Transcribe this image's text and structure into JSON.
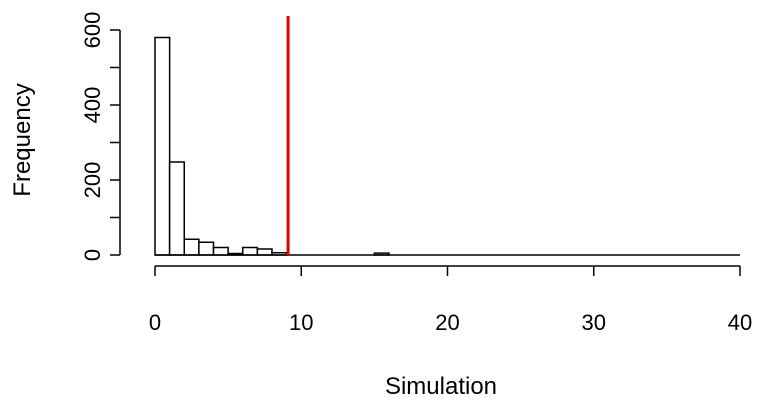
{
  "chart_data": {
    "type": "bar",
    "title": "",
    "xlabel": "Simulation",
    "ylabel": "Frequency",
    "xlim": [
      0,
      40
    ],
    "ylim": [
      0,
      620
    ],
    "bin_width": 1,
    "bins": [
      {
        "x0": 0,
        "x1": 1,
        "count": 580
      },
      {
        "x0": 1,
        "x1": 2,
        "count": 248
      },
      {
        "x0": 2,
        "x1": 3,
        "count": 42
      },
      {
        "x0": 3,
        "x1": 4,
        "count": 34
      },
      {
        "x0": 4,
        "x1": 5,
        "count": 20
      },
      {
        "x0": 5,
        "x1": 6,
        "count": 4
      },
      {
        "x0": 6,
        "x1": 7,
        "count": 20
      },
      {
        "x0": 7,
        "x1": 8,
        "count": 16
      },
      {
        "x0": 8,
        "x1": 9,
        "count": 6
      },
      {
        "x0": 15,
        "x1": 16,
        "count": 5
      }
    ],
    "x_ticks": [
      0,
      10,
      20,
      30,
      40
    ],
    "y_ticks": [
      0,
      200,
      400,
      600
    ],
    "reference_line": {
      "x": 9.1,
      "color": "#dd0000"
    },
    "bar_fill": "#ffffff",
    "bar_stroke": "#000000",
    "grid": false,
    "legend": "none"
  }
}
